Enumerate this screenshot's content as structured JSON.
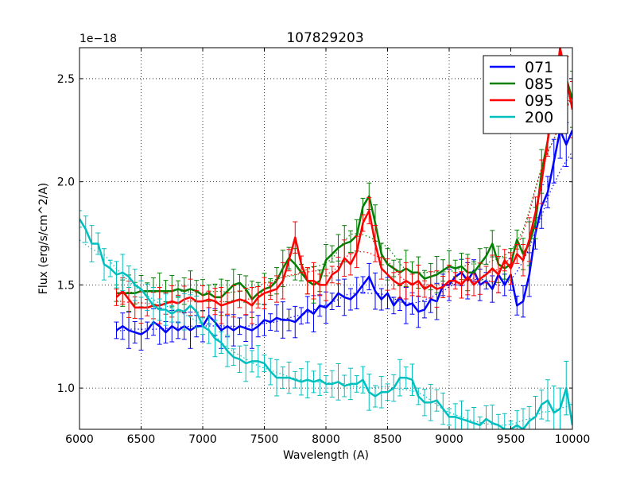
{
  "chart_data": {
    "type": "line",
    "title": "107829203",
    "xlabel": "Wavelength (A)",
    "ylabel": "Flux (erg/s/cm^2/A)",
    "y_offset_label": "1e−18",
    "xlim": [
      6000,
      10000
    ],
    "ylim": [
      0.8,
      2.65
    ],
    "xticks": [
      6000,
      6500,
      7000,
      7500,
      8000,
      8500,
      9000,
      9500,
      10000
    ],
    "xtick_labels": [
      "6000",
      "6500",
      "7000",
      "7500",
      "8000",
      "8500",
      "9000",
      "9500",
      "10000"
    ],
    "yticks": [
      1.0,
      1.5,
      2.0,
      2.5
    ],
    "ytick_labels": [
      "1.0",
      "1.5",
      "2.0",
      "2.5"
    ],
    "grid": true,
    "legend_position": "top-right",
    "series": [
      {
        "name": "071",
        "color": "#0000ff",
        "x": [
          6300,
          6350,
          6400,
          6450,
          6500,
          6550,
          6600,
          6650,
          6700,
          6750,
          6800,
          6850,
          6900,
          6950,
          7000,
          7050,
          7100,
          7150,
          7200,
          7250,
          7300,
          7350,
          7400,
          7450,
          7500,
          7550,
          7600,
          7650,
          7700,
          7750,
          7800,
          7850,
          7900,
          7950,
          8000,
          8050,
          8100,
          8150,
          8200,
          8250,
          8300,
          8350,
          8400,
          8450,
          8500,
          8550,
          8600,
          8650,
          8700,
          8750,
          8800,
          8850,
          8900,
          8950,
          9000,
          9050,
          9100,
          9150,
          9200,
          9250,
          9300,
          9350,
          9400,
          9450,
          9500,
          9550,
          9600,
          9650,
          9700,
          9750,
          9800,
          9850,
          9900,
          9950,
          10000
        ],
        "y": [
          1.28,
          1.3,
          1.28,
          1.27,
          1.26,
          1.28,
          1.32,
          1.3,
          1.27,
          1.3,
          1.28,
          1.3,
          1.28,
          1.3,
          1.3,
          1.35,
          1.32,
          1.28,
          1.3,
          1.28,
          1.3,
          1.29,
          1.28,
          1.3,
          1.33,
          1.32,
          1.34,
          1.33,
          1.33,
          1.32,
          1.35,
          1.38,
          1.36,
          1.4,
          1.39,
          1.42,
          1.46,
          1.44,
          1.43,
          1.46,
          1.5,
          1.54,
          1.47,
          1.43,
          1.46,
          1.4,
          1.44,
          1.4,
          1.41,
          1.37,
          1.38,
          1.43,
          1.42,
          1.5,
          1.5,
          1.54,
          1.56,
          1.52,
          1.57,
          1.5,
          1.52,
          1.48,
          1.55,
          1.5,
          1.55,
          1.4,
          1.42,
          1.55,
          1.75,
          1.88,
          1.95,
          2.1,
          2.25,
          2.18,
          2.25
        ]
      },
      {
        "name": "085",
        "color": "#008000",
        "x": [
          6300,
          6350,
          6400,
          6450,
          6500,
          6550,
          6600,
          6650,
          6700,
          6750,
          6800,
          6850,
          6900,
          6950,
          7000,
          7050,
          7100,
          7150,
          7200,
          7250,
          7300,
          7350,
          7400,
          7450,
          7500,
          7550,
          7600,
          7650,
          7700,
          7750,
          7800,
          7850,
          7900,
          7950,
          8000,
          8050,
          8100,
          8150,
          8200,
          8250,
          8300,
          8350,
          8400,
          8450,
          8500,
          8550,
          8600,
          8650,
          8700,
          8750,
          8800,
          8850,
          8900,
          8950,
          9000,
          9050,
          9100,
          9150,
          9200,
          9250,
          9300,
          9350,
          9400,
          9450,
          9500,
          9550,
          9600,
          9650,
          9700,
          9750,
          9800,
          9850,
          9900,
          9950,
          10000
        ],
        "y": [
          1.46,
          1.46,
          1.46,
          1.46,
          1.47,
          1.47,
          1.47,
          1.47,
          1.47,
          1.47,
          1.48,
          1.47,
          1.48,
          1.47,
          1.45,
          1.46,
          1.44,
          1.44,
          1.47,
          1.5,
          1.51,
          1.48,
          1.43,
          1.46,
          1.48,
          1.49,
          1.52,
          1.58,
          1.63,
          1.6,
          1.56,
          1.52,
          1.5,
          1.52,
          1.62,
          1.65,
          1.68,
          1.7,
          1.71,
          1.74,
          1.88,
          1.93,
          1.8,
          1.65,
          1.6,
          1.58,
          1.56,
          1.58,
          1.56,
          1.56,
          1.53,
          1.54,
          1.55,
          1.57,
          1.59,
          1.58,
          1.59,
          1.56,
          1.56,
          1.6,
          1.64,
          1.7,
          1.6,
          1.58,
          1.6,
          1.72,
          1.65,
          1.7,
          1.8,
          2.05,
          2.2,
          2.45,
          2.55,
          2.5,
          2.4
        ]
      },
      {
        "name": "095",
        "color": "#ff0000",
        "x": [
          6300,
          6350,
          6400,
          6450,
          6500,
          6550,
          6600,
          6650,
          6700,
          6750,
          6800,
          6850,
          6900,
          6950,
          7000,
          7050,
          7100,
          7150,
          7200,
          7250,
          7300,
          7350,
          7400,
          7450,
          7500,
          7550,
          7600,
          7650,
          7700,
          7750,
          7800,
          7850,
          7900,
          7950,
          8000,
          8050,
          8100,
          8150,
          8200,
          8250,
          8300,
          8350,
          8400,
          8450,
          8500,
          8550,
          8600,
          8650,
          8700,
          8750,
          8800,
          8850,
          8900,
          8950,
          9000,
          9050,
          9100,
          9150,
          9200,
          9250,
          9300,
          9350,
          9400,
          9450,
          9500,
          9550,
          9600,
          9650,
          9700,
          9750,
          9800,
          9850,
          9900,
          9950,
          10000
        ],
        "y": [
          1.44,
          1.47,
          1.43,
          1.39,
          1.39,
          1.39,
          1.4,
          1.4,
          1.41,
          1.42,
          1.41,
          1.43,
          1.44,
          1.42,
          1.42,
          1.43,
          1.42,
          1.4,
          1.41,
          1.42,
          1.43,
          1.42,
          1.4,
          1.44,
          1.46,
          1.47,
          1.48,
          1.52,
          1.62,
          1.73,
          1.6,
          1.52,
          1.52,
          1.5,
          1.5,
          1.55,
          1.57,
          1.63,
          1.6,
          1.66,
          1.8,
          1.86,
          1.7,
          1.58,
          1.55,
          1.52,
          1.5,
          1.52,
          1.5,
          1.52,
          1.48,
          1.5,
          1.48,
          1.49,
          1.52,
          1.52,
          1.5,
          1.54,
          1.5,
          1.53,
          1.55,
          1.58,
          1.55,
          1.62,
          1.58,
          1.65,
          1.62,
          1.72,
          1.85,
          2.0,
          2.2,
          2.4,
          2.65,
          2.5,
          2.35
        ]
      },
      {
        "name": "200",
        "color": "#00bfbf",
        "x": [
          6000,
          6050,
          6100,
          6150,
          6200,
          6250,
          6300,
          6350,
          6400,
          6450,
          6500,
          6550,
          6600,
          6650,
          6700,
          6750,
          6800,
          6850,
          6900,
          6950,
          7000,
          7050,
          7100,
          7150,
          7200,
          7250,
          7300,
          7350,
          7400,
          7450,
          7500,
          7550,
          7600,
          7650,
          7700,
          7750,
          7800,
          7850,
          7900,
          7950,
          8000,
          8050,
          8100,
          8150,
          8200,
          8250,
          8300,
          8350,
          8400,
          8450,
          8500,
          8550,
          8600,
          8650,
          8700,
          8750,
          8800,
          8850,
          8900,
          8950,
          9000,
          9050,
          9100,
          9150,
          9200,
          9250,
          9300,
          9350,
          9400,
          9450,
          9500,
          9550,
          9600,
          9650,
          9700,
          9750,
          9800,
          9850,
          9900,
          9950,
          10000
        ],
        "y": [
          1.82,
          1.77,
          1.7,
          1.7,
          1.6,
          1.58,
          1.55,
          1.56,
          1.54,
          1.5,
          1.48,
          1.44,
          1.4,
          1.38,
          1.38,
          1.36,
          1.38,
          1.37,
          1.4,
          1.37,
          1.3,
          1.28,
          1.24,
          1.22,
          1.18,
          1.15,
          1.14,
          1.12,
          1.13,
          1.13,
          1.12,
          1.08,
          1.05,
          1.05,
          1.05,
          1.04,
          1.03,
          1.04,
          1.03,
          1.04,
          1.02,
          1.02,
          1.03,
          1.01,
          1.02,
          1.02,
          1.04,
          0.98,
          0.96,
          0.98,
          0.98,
          1.0,
          1.05,
          1.05,
          1.04,
          0.96,
          0.93,
          0.93,
          0.94,
          0.9,
          0.86,
          0.86,
          0.85,
          0.84,
          0.83,
          0.82,
          0.85,
          0.83,
          0.82,
          0.8,
          0.8,
          0.82,
          0.8,
          0.84,
          0.86,
          0.92,
          0.94,
          0.88,
          0.9,
          1.0,
          0.82
        ]
      }
    ]
  }
}
